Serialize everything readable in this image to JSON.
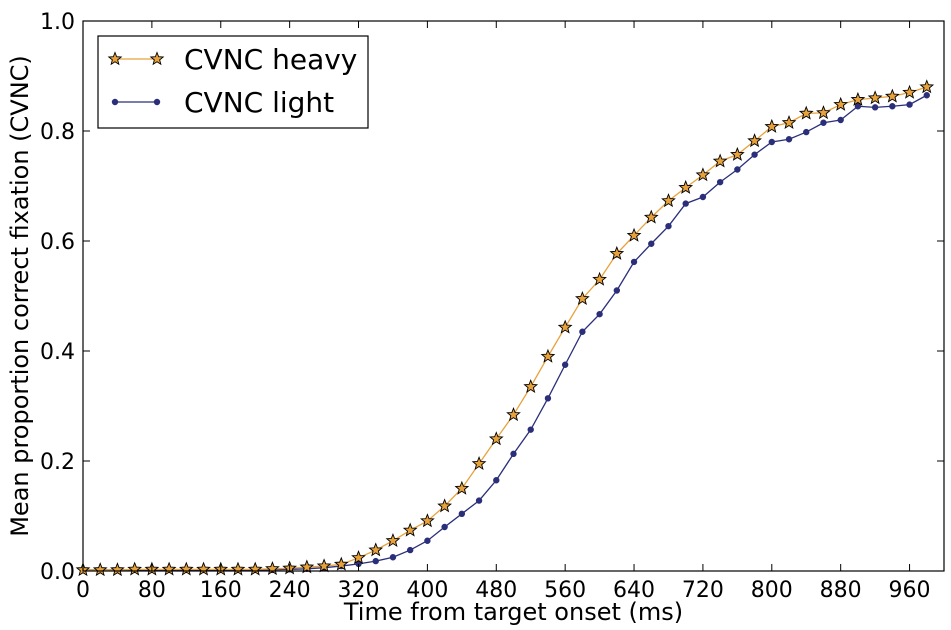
{
  "chart_data": {
    "type": "line",
    "xlabel": "Time from target onset (ms)",
    "ylabel": "Mean proportion correct fixation (CVNC)",
    "xlim": [
      0,
      1000
    ],
    "ylim": [
      0.0,
      1.0
    ],
    "xticks": [
      0,
      80,
      160,
      240,
      320,
      400,
      480,
      560,
      640,
      720,
      800,
      880,
      960
    ],
    "yticks": [
      0.0,
      0.2,
      0.4,
      0.6,
      0.8,
      1.0
    ],
    "ytick_labels": [
      "0.0",
      "0.2",
      "0.4",
      "0.6",
      "0.8",
      "1.0"
    ],
    "grid": false,
    "legend_position": "top-left",
    "x": [
      0,
      20,
      40,
      60,
      80,
      100,
      120,
      140,
      160,
      180,
      200,
      220,
      240,
      260,
      280,
      300,
      320,
      340,
      360,
      380,
      400,
      420,
      440,
      460,
      480,
      500,
      520,
      540,
      560,
      580,
      600,
      620,
      640,
      660,
      680,
      700,
      720,
      740,
      760,
      780,
      800,
      820,
      840,
      860,
      880,
      900,
      920,
      940,
      960,
      980
    ],
    "series": [
      {
        "name": "CVNC heavy",
        "color": "#e8a23c",
        "marker": "star",
        "values": [
          0.002,
          0.002,
          0.002,
          0.003,
          0.003,
          0.003,
          0.003,
          0.003,
          0.003,
          0.003,
          0.003,
          0.004,
          0.005,
          0.007,
          0.009,
          0.012,
          0.024,
          0.038,
          0.055,
          0.074,
          0.091,
          0.118,
          0.15,
          0.195,
          0.24,
          0.284,
          0.335,
          0.39,
          0.443,
          0.495,
          0.53,
          0.577,
          0.61,
          0.643,
          0.673,
          0.697,
          0.72,
          0.745,
          0.757,
          0.782,
          0.808,
          0.815,
          0.832,
          0.833,
          0.848,
          0.857,
          0.86,
          0.863,
          0.87,
          0.88
        ]
      },
      {
        "name": "CVNC light",
        "color": "#2b2f7a",
        "marker": "circle",
        "values": [
          0.002,
          0.002,
          0.002,
          0.002,
          0.002,
          0.002,
          0.002,
          0.002,
          0.002,
          0.002,
          0.002,
          0.002,
          0.003,
          0.004,
          0.006,
          0.009,
          0.013,
          0.018,
          0.025,
          0.038,
          0.055,
          0.08,
          0.104,
          0.128,
          0.165,
          0.213,
          0.257,
          0.314,
          0.375,
          0.435,
          0.467,
          0.51,
          0.562,
          0.595,
          0.627,
          0.668,
          0.68,
          0.707,
          0.73,
          0.757,
          0.78,
          0.785,
          0.798,
          0.815,
          0.82,
          0.845,
          0.843,
          0.845,
          0.848,
          0.865
        ]
      }
    ]
  }
}
